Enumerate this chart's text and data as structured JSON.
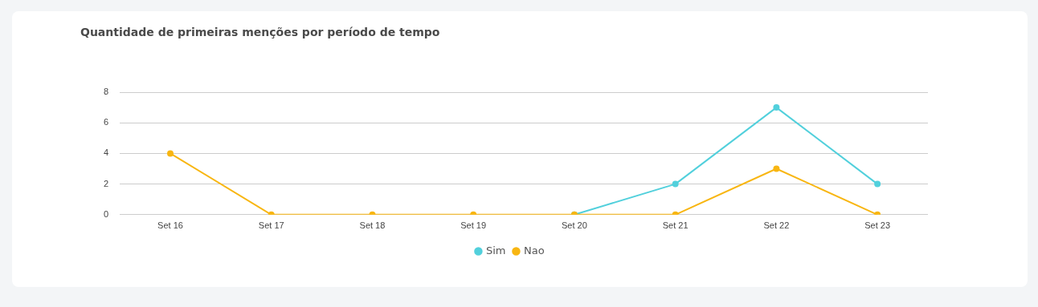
{
  "chart_data": {
    "type": "line",
    "title": "Quantidade de primeiras menções por período de tempo",
    "categories": [
      "Set 16",
      "Set 17",
      "Set 18",
      "Set 19",
      "Set 20",
      "Set 21",
      "Set 22",
      "Set 23"
    ],
    "series": [
      {
        "name": "Sim",
        "color": "#52d0dc",
        "values": [
          null,
          null,
          null,
          null,
          0,
          2,
          7,
          2
        ]
      },
      {
        "name": "Nao",
        "color": "#f8b612",
        "values": [
          4,
          0,
          0,
          0,
          0,
          0,
          3,
          0
        ]
      }
    ],
    "ylim": [
      0,
      8
    ],
    "yticks": [
      0,
      2,
      4,
      6,
      8
    ],
    "grid": "y",
    "legend": "bottom",
    "marker": "circle",
    "line_style": "solid"
  }
}
